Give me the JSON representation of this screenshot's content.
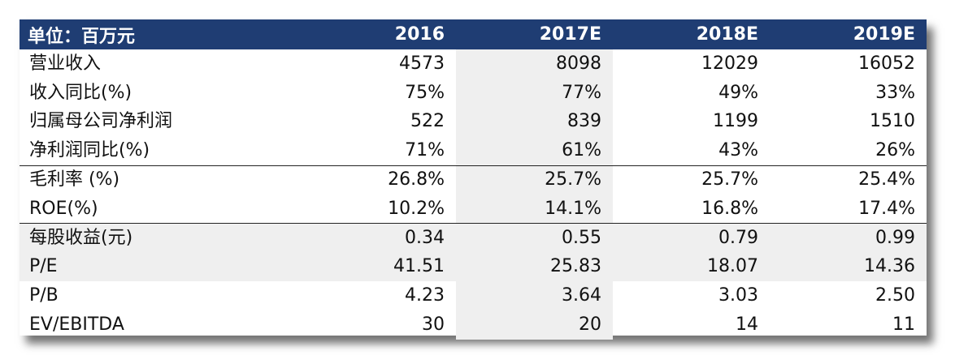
{
  "table": {
    "header": [
      "单位：百万元",
      "2016",
      "2017E",
      "2018E",
      "2019E"
    ],
    "rows": [
      {
        "label": "营业收入",
        "values": [
          "4573",
          "8098",
          "12029",
          "16052"
        ]
      },
      {
        "label": "收入同比(%)",
        "values": [
          "75%",
          "77%",
          "49%",
          "33%"
        ]
      },
      {
        "label": "归属母公司净利润",
        "values": [
          "522",
          "839",
          "1199",
          "1510"
        ]
      },
      {
        "label": "净利润同比(%)",
        "values": [
          "71%",
          "61%",
          "43%",
          "26%"
        ]
      },
      {
        "label": "毛利率 (%)",
        "values": [
          "26.8%",
          "25.7%",
          "25.7%",
          "25.4%"
        ]
      },
      {
        "label": "ROE(%)",
        "values": [
          "10.2%",
          "14.1%",
          "16.8%",
          "17.4%"
        ]
      },
      {
        "label": "每股收益(元)",
        "values": [
          "0.34",
          "0.55",
          "0.79",
          "0.99"
        ]
      },
      {
        "label": "P/E",
        "values": [
          "41.51",
          "25.83",
          "18.07",
          "14.36"
        ]
      },
      {
        "label": "P/B",
        "values": [
          "4.23",
          "3.64",
          "3.03",
          "2.50"
        ]
      },
      {
        "label": "EV/EBITDA",
        "values": [
          "30",
          "20",
          "14",
          "11"
        ]
      }
    ]
  },
  "colors": {
    "header_bg": "#1f3d73",
    "header_text": "#ffffff",
    "shade": "#efefef"
  }
}
